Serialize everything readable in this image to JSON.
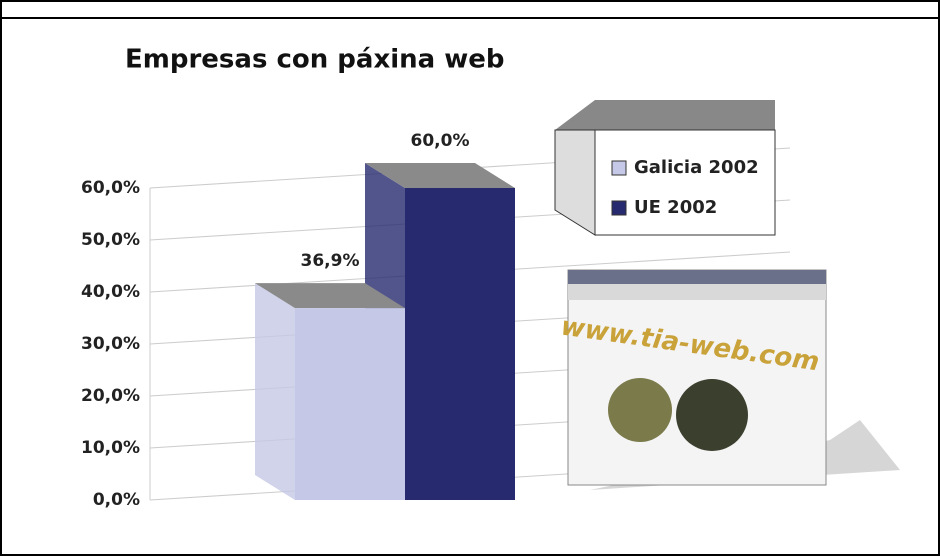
{
  "chart_data": {
    "type": "bar3d",
    "title": "Empresas con páxina web",
    "categories": [
      null
    ],
    "series": [
      {
        "name": "Galicia 2002",
        "color": "#c5c8e6",
        "values": [
          36.9
        ],
        "value_labels": [
          "36,9%"
        ]
      },
      {
        "name": "UE 2002",
        "color": "#272a6e",
        "values": [
          60
        ],
        "value_labels": [
          "60,0%"
        ]
      }
    ],
    "ylim": [
      0,
      60
    ],
    "yticks": [
      {
        "value": 0,
        "label": "0,0%"
      },
      {
        "value": 10,
        "label": "10,0%"
      },
      {
        "value": 20,
        "label": "20,0%"
      },
      {
        "value": 30,
        "label": "30,0%"
      },
      {
        "value": 40,
        "label": "40,0%"
      },
      {
        "value": 50,
        "label": "50,0%"
      },
      {
        "value": 60,
        "label": "60,0%"
      }
    ],
    "grid": true,
    "annotations": [
      "www.tia-web.com"
    ]
  }
}
